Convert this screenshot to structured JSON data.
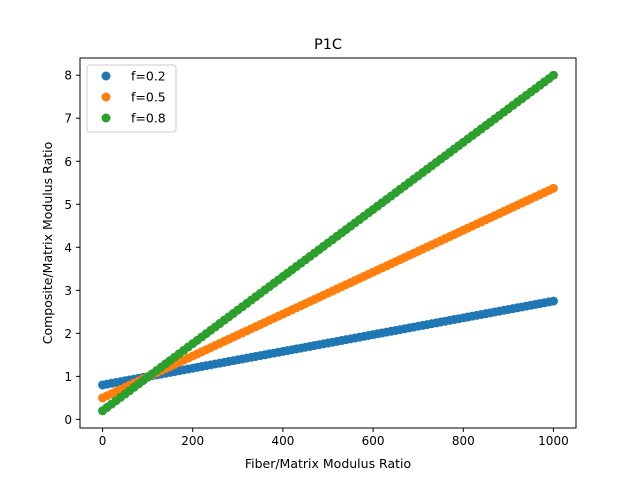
{
  "chart_data": {
    "type": "scatter",
    "title": "P1C",
    "xlabel": "Fiber/Matrix Modulus Ratio",
    "ylabel": "Composite/Matrix Modulus Ratio",
    "xlim": [
      -50,
      1050
    ],
    "ylim": [
      -0.2,
      8.4
    ],
    "xticks": [
      0,
      200,
      400,
      600,
      800,
      1000
    ],
    "yticks": [
      0,
      1,
      2,
      3,
      4,
      5,
      6,
      7,
      8
    ],
    "x_range": [
      0,
      1000
    ],
    "num_points_per_series": 101,
    "series": [
      {
        "name": "f=0.2",
        "color": "#1f77b4",
        "y_at_x0": 0.8,
        "y_at_x1000": 2.75
      },
      {
        "name": "f=0.5",
        "color": "#ff7f0e",
        "y_at_x0": 0.5,
        "y_at_x1000": 5.37
      },
      {
        "name": "f=0.8",
        "color": "#2ca02c",
        "y_at_x0": 0.2,
        "y_at_x1000": 8.0
      }
    ],
    "legend_position": "top-left",
    "grid": false
  }
}
